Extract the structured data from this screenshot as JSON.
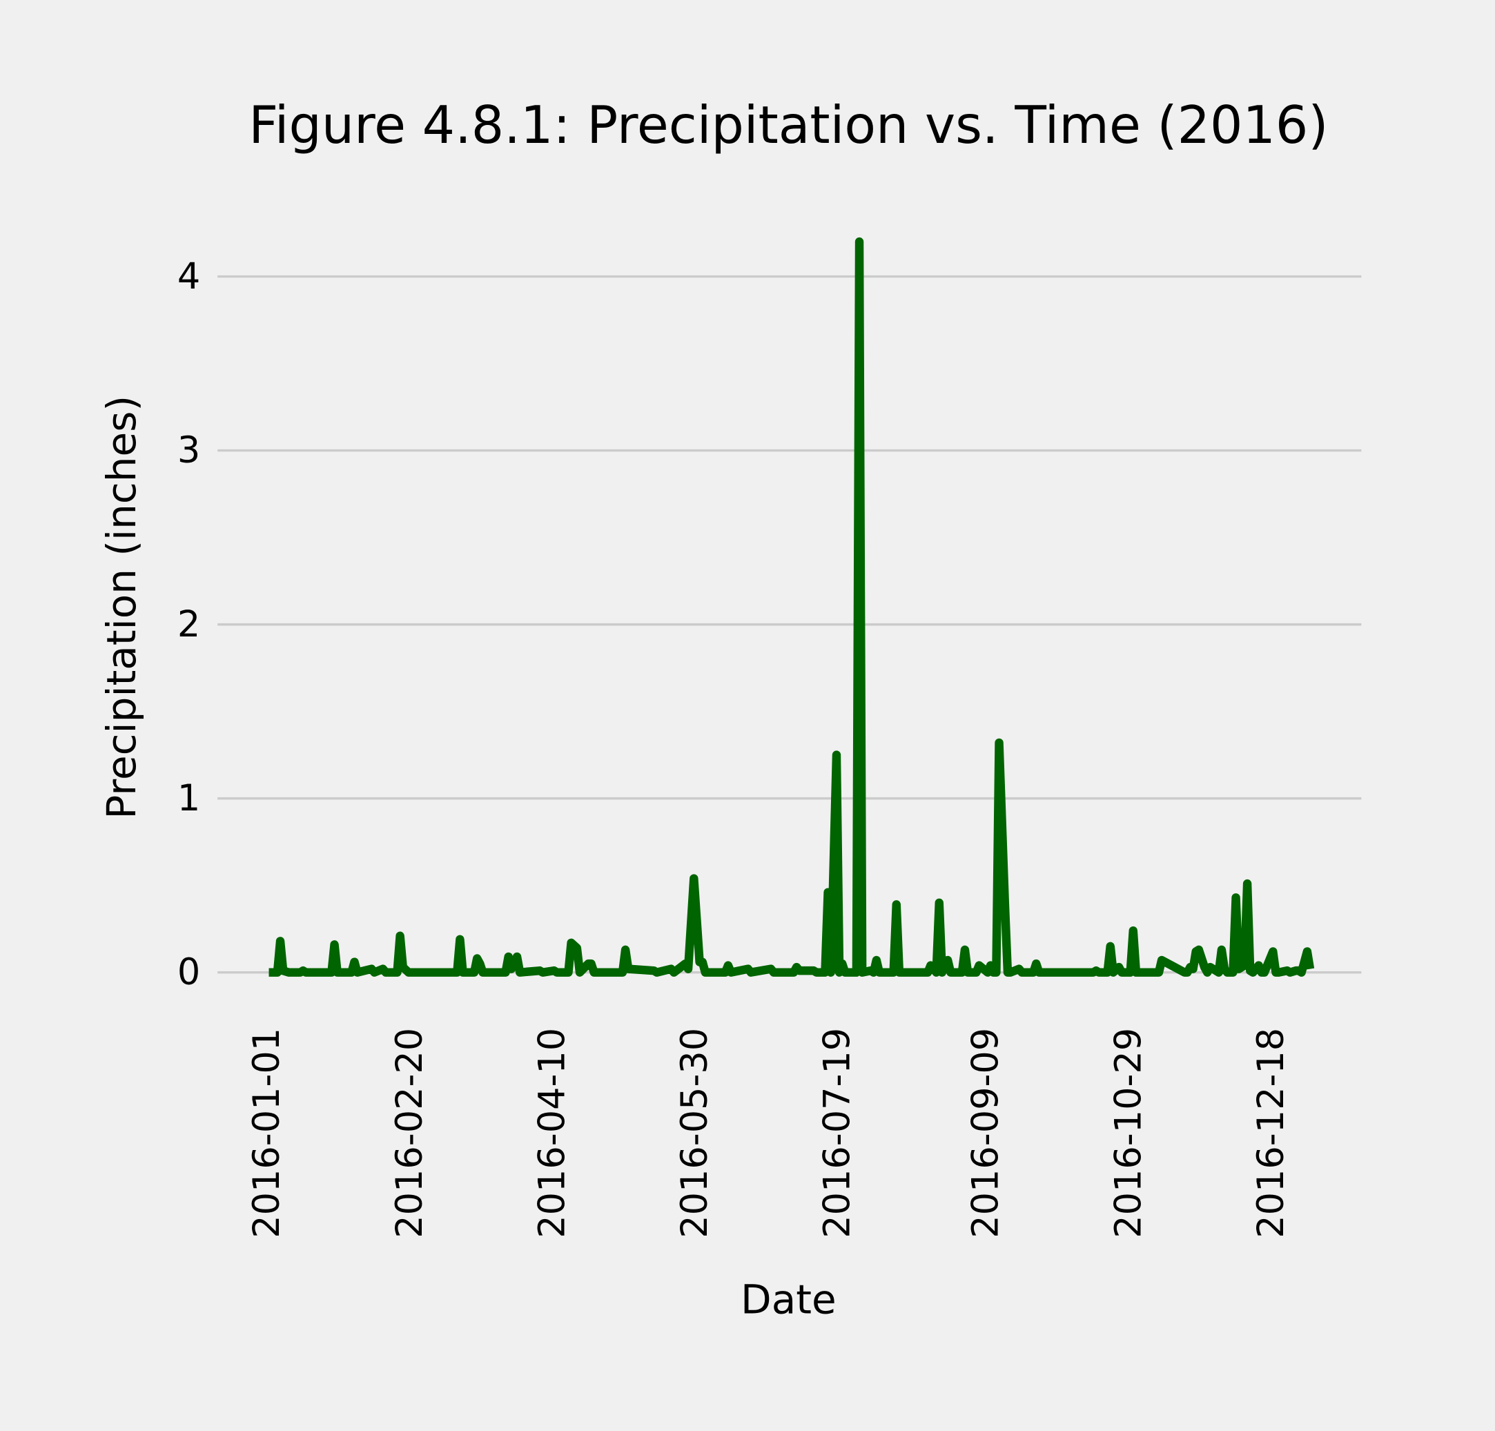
{
  "chart_data": {
    "type": "line",
    "title": "Figure 4.8.1: Precipitation vs. Time (2016)",
    "xlabel": "Date",
    "ylabel": "Precipitation (inches)",
    "x": [
      "2016-01-01",
      "2016-01-04",
      "2016-01-05",
      "2016-01-06",
      "2016-01-08",
      "2016-01-12",
      "2016-01-13",
      "2016-01-14",
      "2016-01-23",
      "2016-01-24",
      "2016-01-25",
      "2016-01-30",
      "2016-01-31",
      "2016-02-01",
      "2016-02-06",
      "2016-02-07",
      "2016-02-10",
      "2016-02-11",
      "2016-02-15",
      "2016-02-16",
      "2016-02-17",
      "2016-02-19",
      "2016-03-07",
      "2016-03-08",
      "2016-03-09",
      "2016-03-13",
      "2016-03-14",
      "2016-03-15",
      "2016-03-16",
      "2016-03-24",
      "2016-03-25",
      "2016-03-26",
      "2016-03-28",
      "2016-03-29",
      "2016-04-05",
      "2016-04-06",
      "2016-04-10",
      "2016-04-11",
      "2016-04-15",
      "2016-04-16",
      "2016-04-18",
      "2016-04-19",
      "2016-04-22",
      "2016-04-23",
      "2016-04-24",
      "2016-05-04",
      "2016-05-05",
      "2016-05-06",
      "2016-05-15",
      "2016-05-16",
      "2016-05-21",
      "2016-05-22",
      "2016-05-26",
      "2016-05-27",
      "2016-05-29",
      "2016-05-31",
      "2016-06-01",
      "2016-06-02",
      "2016-06-09",
      "2016-06-10",
      "2016-06-11",
      "2016-06-17",
      "2016-06-18",
      "2016-06-25",
      "2016-06-26",
      "2016-07-03",
      "2016-07-04",
      "2016-07-05",
      "2016-07-10",
      "2016-07-11",
      "2016-07-14",
      "2016-07-15",
      "2016-07-16",
      "2016-07-18",
      "2016-07-19",
      "2016-07-20",
      "2016-07-21",
      "2016-07-24",
      "2016-07-25",
      "2016-07-26",
      "2016-07-27",
      "2016-07-30",
      "2016-07-31",
      "2016-08-01",
      "2016-08-02",
      "2016-08-07",
      "2016-08-08",
      "2016-08-09",
      "2016-08-19",
      "2016-08-20",
      "2016-08-22",
      "2016-08-23",
      "2016-08-24",
      "2016-08-26",
      "2016-08-27",
      "2016-08-28",
      "2016-08-31",
      "2016-09-01",
      "2016-09-02",
      "2016-09-05",
      "2016-09-06",
      "2016-09-09",
      "2016-09-10",
      "2016-09-11",
      "2016-09-12",
      "2016-09-13",
      "2016-09-15",
      "2016-09-16",
      "2016-09-17",
      "2016-09-20",
      "2016-09-21",
      "2016-09-22",
      "2016-09-25",
      "2016-09-26",
      "2016-09-27",
      "2016-10-16",
      "2016-10-17",
      "2016-10-18",
      "2016-10-21",
      "2016-10-22",
      "2016-10-23",
      "2016-10-25",
      "2016-10-26",
      "2016-10-29",
      "2016-10-30",
      "2016-10-31",
      "2016-11-07",
      "2016-11-08",
      "2016-11-09",
      "2016-11-17",
      "2016-11-18",
      "2016-11-19",
      "2016-11-20",
      "2016-11-21",
      "2016-11-22",
      "2016-11-24",
      "2016-11-25",
      "2016-11-26",
      "2016-11-29",
      "2016-11-30",
      "2016-12-01",
      "2016-12-02",
      "2016-12-04",
      "2016-12-05",
      "2016-12-06",
      "2016-12-08",
      "2016-12-09",
      "2016-12-10",
      "2016-12-11",
      "2016-12-13",
      "2016-12-14",
      "2016-12-15",
      "2016-12-18",
      "2016-12-19",
      "2016-12-20",
      "2016-12-23",
      "2016-12-24",
      "2016-12-26",
      "2016-12-27",
      "2016-12-28",
      "2016-12-30",
      "2016-12-31"
    ],
    "values": [
      0,
      0,
      0.18,
      0.01,
      0,
      0,
      0.01,
      0,
      0,
      0.16,
      0,
      0,
      0.06,
      0,
      0.02,
      0,
      0.02,
      0,
      0,
      0.21,
      0.03,
      0,
      0,
      0.19,
      0,
      0,
      0.08,
      0.05,
      0,
      0,
      0.09,
      0.02,
      0.09,
      0,
      0.01,
      0,
      0.01,
      0,
      0,
      0.17,
      0.14,
      0,
      0.05,
      0.05,
      0,
      0,
      0.13,
      0.02,
      0.01,
      0,
      0.02,
      0,
      0.05,
      0.02,
      0.54,
      0.06,
      0.06,
      0,
      0,
      0.04,
      0,
      0.02,
      0,
      0.02,
      0,
      0,
      0.03,
      0.01,
      0.01,
      0,
      0,
      0.46,
      0,
      1.25,
      0,
      0.05,
      0,
      0,
      0,
      4.2,
      0,
      0.01,
      0,
      0.07,
      0,
      0,
      0.39,
      0,
      0,
      0.04,
      0,
      0.4,
      0,
      0.07,
      0,
      0,
      0,
      0.13,
      0,
      0,
      0.04,
      0,
      0.04,
      0,
      0,
      1.32,
      0.4,
      0,
      0,
      0.02,
      0,
      0,
      0,
      0.05,
      0,
      0,
      0.01,
      0,
      0,
      0.15,
      0,
      0.03,
      0,
      0,
      0.24,
      0,
      0,
      0,
      0.07,
      0,
      0,
      0.03,
      0.02,
      0.12,
      0.13,
      0.03,
      0,
      0.03,
      0,
      0.13,
      0.02,
      0,
      0,
      0.43,
      0.02,
      0.04,
      0.51,
      0.01,
      0,
      0.04,
      0,
      0,
      0.12,
      0,
      0,
      0.01,
      0,
      0.01,
      0.01,
      0,
      0.12,
      0.02
    ],
    "color": "#006400",
    "xlim": [
      "2015-12-14",
      "2017-01-18"
    ],
    "xticks": [
      "2016-01-01",
      "2016-02-20",
      "2016-04-10",
      "2016-05-30",
      "2016-07-19",
      "2016-09-09",
      "2016-10-29",
      "2016-12-18"
    ],
    "ylim": [
      -0.21,
      4.41
    ],
    "yticks": [
      0,
      1,
      2,
      3,
      4
    ],
    "grid": true
  }
}
